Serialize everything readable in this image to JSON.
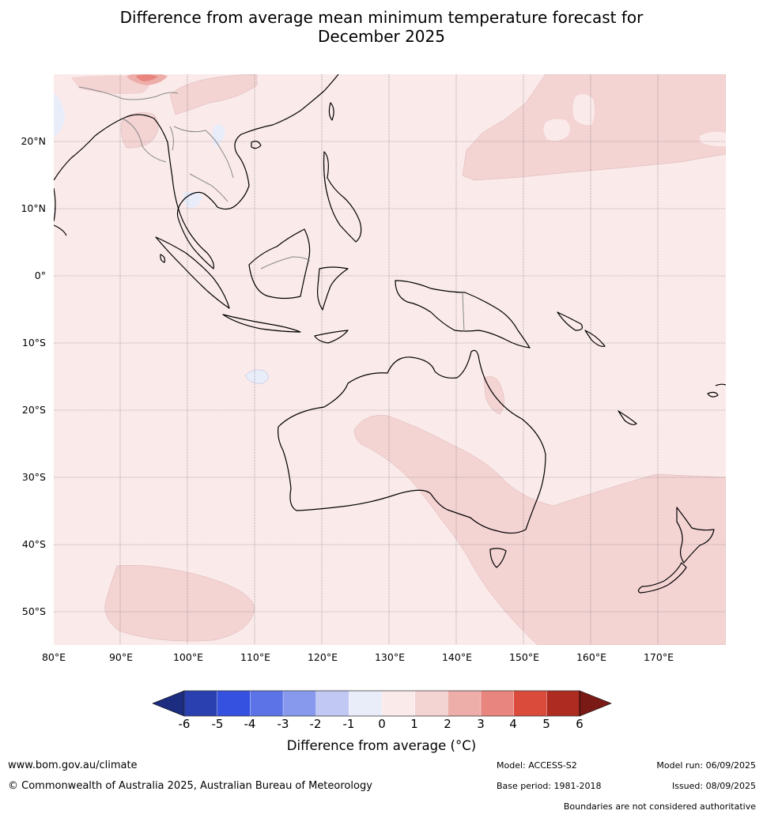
{
  "title_line1": "Difference from average mean minimum temperature forecast for",
  "title_line2": "December 2025",
  "map": {
    "latitude_labels": [
      "20°N",
      "10°N",
      "0°",
      "10°S",
      "20°S",
      "30°S",
      "40°S",
      "50°S"
    ],
    "longitude_labels": [
      "80°E",
      "90°E",
      "100°E",
      "110°E",
      "120°E",
      "130°E",
      "140°E",
      "150°E",
      "160°E",
      "170°E"
    ],
    "dominant_category": "0 to 1",
    "shading_colors": {
      "neg_1_0": "#e9edfa",
      "pos_0_1": "#fbeaea",
      "pos_1_2": "#f4d3d3",
      "pos_2_3": "#edaeaa",
      "pos_3_4": "#e8857e"
    }
  },
  "colorbar": {
    "title": "Difference from average (°C)",
    "ticks": [
      "-6",
      "-5",
      "-4",
      "-3",
      "-2",
      "-1",
      "0",
      "1",
      "2",
      "3",
      "4",
      "5",
      "6"
    ],
    "colors": [
      "#1c2c7e",
      "#2a40b0",
      "#3451e0",
      "#5b73e6",
      "#8799ec",
      "#c0c8f3",
      "#e9edfa",
      "#fbeaea",
      "#f4d3d3",
      "#edaeaa",
      "#e8857e",
      "#db4b3c",
      "#ad2b21",
      "#7a1a16"
    ]
  },
  "footer": {
    "website": "www.bom.gov.au/climate",
    "copyright": "© Commonwealth of Australia 2025, Australian Bureau of Meteorology",
    "model": "Model: ACCESS-S2",
    "base_period": "Base period: 1981-2018",
    "model_run": "Model run: 06/09/2025",
    "issued": "Issued: 08/09/2025",
    "disclaimer": "Boundaries are not considered authoritative"
  }
}
